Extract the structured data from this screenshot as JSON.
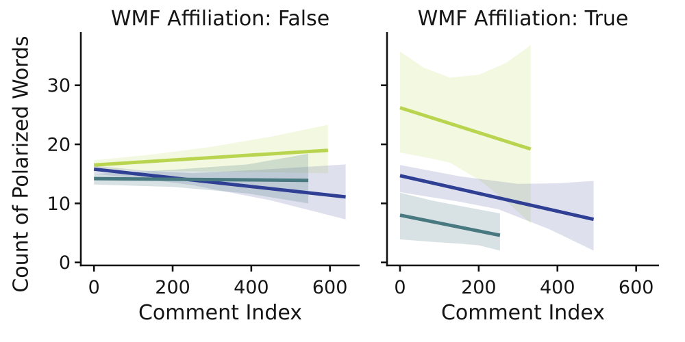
{
  "figure": {
    "ylabel": "Count of Polarized Words"
  },
  "chart_data": [
    {
      "type": "line",
      "title": "WMF Affiliation: False",
      "xlabel": "Comment Index",
      "ylabel": "Count of Polarized Words",
      "xlim": [
        -33.5,
        675.5
      ],
      "ylim": [
        -0.5,
        39
      ],
      "xticks": [
        0,
        200,
        400,
        600
      ],
      "yticks": [
        0,
        10,
        20,
        30
      ],
      "show_ytick_labels": true,
      "grid": false,
      "legend": false,
      "series": [
        {
          "name": "series-lime",
          "color": "#b9d54f",
          "band_opacity": 0.17,
          "line": [
            [
              0,
              16.5
            ],
            [
              595,
              19.0
            ]
          ],
          "band_upper": [
            [
              0,
              17.3
            ],
            [
              150,
              18.3
            ],
            [
              300,
              19.6
            ],
            [
              450,
              21.3
            ],
            [
              595,
              23.3
            ]
          ],
          "band_lower": [
            [
              0,
              15.6
            ],
            [
              300,
              15.4
            ],
            [
              595,
              15.1
            ]
          ]
        },
        {
          "name": "series-navy",
          "color": "#2f3f94",
          "band_opacity": 0.16,
          "line": [
            [
              0,
              15.8
            ],
            [
              640,
              11.1
            ]
          ],
          "band_upper": [
            [
              0,
              16.4
            ],
            [
              120,
              15.6
            ],
            [
              250,
              15.1
            ],
            [
              450,
              15.8
            ],
            [
              640,
              16.6
            ]
          ],
          "band_lower": [
            [
              0,
              15.0
            ],
            [
              120,
              14.2
            ],
            [
              250,
              13.1
            ],
            [
              450,
              10.5
            ],
            [
              640,
              7.3
            ]
          ]
        },
        {
          "name": "series-teal",
          "color": "#487880",
          "band_opacity": 0.21,
          "line": [
            [
              0,
              14.2
            ],
            [
              545,
              13.9
            ]
          ],
          "band_upper": [
            [
              0,
              15.0
            ],
            [
              200,
              15.7
            ],
            [
              390,
              16.6
            ],
            [
              545,
              18.4
            ]
          ],
          "band_lower": [
            [
              0,
              13.2
            ],
            [
              200,
              12.8
            ],
            [
              390,
              11.7
            ],
            [
              545,
              10.0
            ]
          ]
        }
      ]
    },
    {
      "type": "line",
      "title": "WMF Affiliation: True",
      "xlabel": "Comment Index",
      "ylabel": "Count of Polarized Words",
      "xlim": [
        -33,
        658
      ],
      "ylim": [
        -0.5,
        39
      ],
      "xticks": [
        0,
        200,
        400,
        600
      ],
      "yticks": [
        0,
        10,
        20,
        30
      ],
      "show_ytick_labels": false,
      "grid": false,
      "legend": false,
      "series": [
        {
          "name": "series-lime",
          "color": "#b9d54f",
          "band_opacity": 0.17,
          "line": [
            [
              0,
              26.2
            ],
            [
              332,
              19.2
            ]
          ],
          "band_upper": [
            [
              0,
              35.7
            ],
            [
              60,
              33.0
            ],
            [
              127,
              31.3
            ],
            [
              200,
              31.8
            ],
            [
              270,
              33.8
            ],
            [
              332,
              36.8
            ]
          ],
          "band_lower": [
            [
              0,
              18.6
            ],
            [
              80,
              17.6
            ],
            [
              127,
              16.9
            ],
            [
              200,
              14.0
            ],
            [
              270,
              10.4
            ],
            [
              332,
              6.6
            ]
          ]
        },
        {
          "name": "series-navy",
          "color": "#2f3f94",
          "band_opacity": 0.16,
          "line": [
            [
              0,
              14.7
            ],
            [
              492,
              7.3
            ]
          ],
          "band_upper": [
            [
              0,
              16.5
            ],
            [
              150,
              14.6
            ],
            [
              300,
              13.3
            ],
            [
              400,
              13.4
            ],
            [
              492,
              13.8
            ]
          ],
          "band_lower": [
            [
              0,
              11.9
            ],
            [
              150,
              10.3
            ],
            [
              250,
              9.0
            ],
            [
              380,
              5.6
            ],
            [
              492,
              2.0
            ]
          ]
        },
        {
          "name": "series-teal",
          "color": "#487880",
          "band_opacity": 0.21,
          "line": [
            [
              0,
              8.0
            ],
            [
              254,
              4.6
            ]
          ],
          "band_upper": [
            [
              0,
              11.8
            ],
            [
              80,
              10.5
            ],
            [
              150,
              9.6
            ],
            [
              254,
              8.3
            ]
          ],
          "band_lower": [
            [
              0,
              3.9
            ],
            [
              80,
              3.5
            ],
            [
              150,
              3.2
            ],
            [
              200,
              2.9
            ],
            [
              254,
              2.0
            ]
          ]
        }
      ]
    }
  ],
  "style": {
    "axis_color": "#111111",
    "text_color": "#151515",
    "tick_fontsize": 27,
    "line_width": 5
  }
}
